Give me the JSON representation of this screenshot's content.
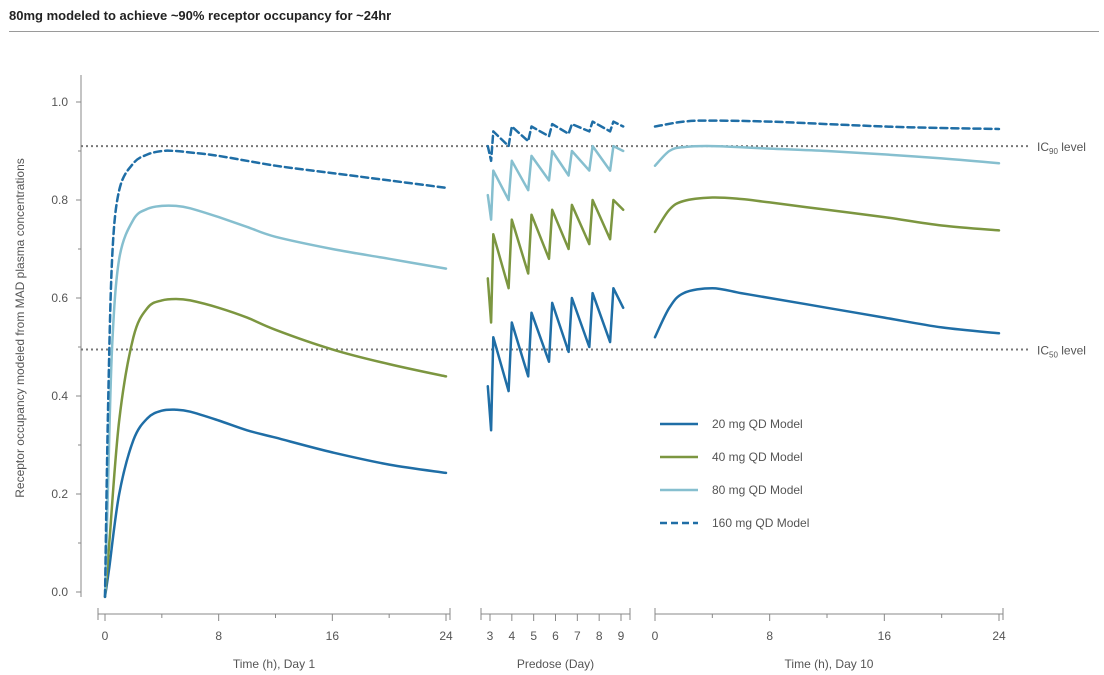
{
  "title": "80mg modeled to achieve ~90% receptor occupancy for ~24hr",
  "chart_data": {
    "type": "line",
    "title": "80mg modeled to achieve ~90% receptor occupancy for ~24hr",
    "ylabel": "Receptor occupancy modeled from MAD plasma concentrations",
    "ylim": [
      0,
      1.0
    ],
    "yticks": [
      "0.0",
      "0.2",
      "0.4",
      "0.6",
      "0.8",
      "1.0"
    ],
    "grid": false,
    "legend_position": "lower-right",
    "reference_lines": [
      {
        "label": "IC",
        "sub": "90",
        "suffix": " level",
        "value": 0.91
      },
      {
        "label": "IC",
        "sub": "50",
        "suffix": " level",
        "value": 0.495
      }
    ],
    "panels": [
      {
        "xlabel": "Time (h), Day 1",
        "xlim": [
          0,
          24
        ],
        "xticks": [
          "0",
          "8",
          "16",
          "24"
        ]
      },
      {
        "xlabel": "Predose (Day)",
        "xlim": [
          3,
          9
        ],
        "xticks": [
          "3",
          "4",
          "5",
          "6",
          "7",
          "8",
          "9"
        ]
      },
      {
        "xlabel": "Time (h), Day 10",
        "xlim": [
          0,
          24
        ],
        "xticks": [
          "0",
          "8",
          "16",
          "24"
        ]
      }
    ],
    "series": [
      {
        "name": "20 mg QD Model",
        "color": "#1f6ea6",
        "dash": false,
        "day1": [
          [
            0,
            -0.01
          ],
          [
            0.3,
            0.05
          ],
          [
            1,
            0.2
          ],
          [
            2,
            0.31
          ],
          [
            3,
            0.355
          ],
          [
            4,
            0.37
          ],
          [
            5,
            0.372
          ],
          [
            6,
            0.368
          ],
          [
            8,
            0.35
          ],
          [
            10,
            0.33
          ],
          [
            12,
            0.315
          ],
          [
            16,
            0.285
          ],
          [
            20,
            0.26
          ],
          [
            24,
            0.243
          ]
        ],
        "predose": [
          [
            2.9,
            0.42
          ],
          [
            3.05,
            0.33
          ],
          [
            3.15,
            0.52
          ],
          [
            3.85,
            0.41
          ],
          [
            4.0,
            0.55
          ],
          [
            4.75,
            0.44
          ],
          [
            4.9,
            0.57
          ],
          [
            5.7,
            0.47
          ],
          [
            5.85,
            0.59
          ],
          [
            6.6,
            0.49
          ],
          [
            6.75,
            0.6
          ],
          [
            7.55,
            0.5
          ],
          [
            7.7,
            0.61
          ],
          [
            8.5,
            0.51
          ],
          [
            8.65,
            0.62
          ],
          [
            9.1,
            0.58
          ]
        ],
        "day10": [
          [
            0,
            0.52
          ],
          [
            1,
            0.58
          ],
          [
            2,
            0.61
          ],
          [
            4,
            0.62
          ],
          [
            6,
            0.61
          ],
          [
            8,
            0.6
          ],
          [
            12,
            0.58
          ],
          [
            16,
            0.56
          ],
          [
            20,
            0.54
          ],
          [
            24,
            0.528
          ]
        ]
      },
      {
        "name": "40 mg QD Model",
        "color": "#7c9640",
        "dash": false,
        "day1": [
          [
            0,
            -0.01
          ],
          [
            0.3,
            0.1
          ],
          [
            1,
            0.35
          ],
          [
            2,
            0.52
          ],
          [
            3,
            0.58
          ],
          [
            4,
            0.595
          ],
          [
            5,
            0.598
          ],
          [
            6,
            0.595
          ],
          [
            8,
            0.58
          ],
          [
            10,
            0.56
          ],
          [
            12,
            0.535
          ],
          [
            16,
            0.495
          ],
          [
            20,
            0.465
          ],
          [
            24,
            0.44
          ]
        ],
        "predose": [
          [
            2.9,
            0.64
          ],
          [
            3.05,
            0.55
          ],
          [
            3.15,
            0.73
          ],
          [
            3.85,
            0.62
          ],
          [
            4.0,
            0.76
          ],
          [
            4.75,
            0.65
          ],
          [
            4.9,
            0.77
          ],
          [
            5.7,
            0.68
          ],
          [
            5.85,
            0.78
          ],
          [
            6.6,
            0.7
          ],
          [
            6.75,
            0.79
          ],
          [
            7.55,
            0.71
          ],
          [
            7.7,
            0.8
          ],
          [
            8.5,
            0.72
          ],
          [
            8.65,
            0.8
          ],
          [
            9.1,
            0.78
          ]
        ],
        "day10": [
          [
            0,
            0.735
          ],
          [
            1,
            0.78
          ],
          [
            2,
            0.798
          ],
          [
            4,
            0.805
          ],
          [
            6,
            0.802
          ],
          [
            8,
            0.795
          ],
          [
            12,
            0.78
          ],
          [
            16,
            0.765
          ],
          [
            20,
            0.748
          ],
          [
            24,
            0.738
          ]
        ]
      },
      {
        "name": "80 mg QD Model",
        "color": "#86bfcf",
        "dash": false,
        "day1": [
          [
            0,
            -0.01
          ],
          [
            0.2,
            0.2
          ],
          [
            0.5,
            0.5
          ],
          [
            1,
            0.68
          ],
          [
            2,
            0.76
          ],
          [
            3,
            0.782
          ],
          [
            4,
            0.788
          ],
          [
            5,
            0.788
          ],
          [
            6,
            0.783
          ],
          [
            8,
            0.765
          ],
          [
            10,
            0.745
          ],
          [
            12,
            0.725
          ],
          [
            16,
            0.7
          ],
          [
            20,
            0.68
          ],
          [
            24,
            0.66
          ]
        ],
        "predose": [
          [
            2.9,
            0.81
          ],
          [
            3.05,
            0.76
          ],
          [
            3.15,
            0.86
          ],
          [
            3.85,
            0.8
          ],
          [
            4.0,
            0.88
          ],
          [
            4.75,
            0.82
          ],
          [
            4.9,
            0.89
          ],
          [
            5.7,
            0.84
          ],
          [
            5.85,
            0.9
          ],
          [
            6.6,
            0.85
          ],
          [
            6.75,
            0.9
          ],
          [
            7.55,
            0.86
          ],
          [
            7.7,
            0.91
          ],
          [
            8.5,
            0.86
          ],
          [
            8.65,
            0.91
          ],
          [
            9.1,
            0.9
          ]
        ],
        "day10": [
          [
            0,
            0.87
          ],
          [
            1,
            0.9
          ],
          [
            2,
            0.908
          ],
          [
            4,
            0.91
          ],
          [
            8,
            0.905
          ],
          [
            12,
            0.9
          ],
          [
            16,
            0.893
          ],
          [
            20,
            0.885
          ],
          [
            24,
            0.875
          ]
        ]
      },
      {
        "name": "160 mg QD Model",
        "color": "#1f6ea6",
        "dash": true,
        "day1": [
          [
            0,
            -0.01
          ],
          [
            0.2,
            0.35
          ],
          [
            0.5,
            0.68
          ],
          [
            1,
            0.82
          ],
          [
            2,
            0.875
          ],
          [
            3,
            0.893
          ],
          [
            4,
            0.9
          ],
          [
            5,
            0.9
          ],
          [
            6,
            0.897
          ],
          [
            8,
            0.89
          ],
          [
            12,
            0.87
          ],
          [
            16,
            0.855
          ],
          [
            20,
            0.84
          ],
          [
            24,
            0.825
          ]
        ],
        "predose": [
          [
            2.9,
            0.91
          ],
          [
            3.05,
            0.88
          ],
          [
            3.15,
            0.94
          ],
          [
            3.85,
            0.91
          ],
          [
            4.0,
            0.95
          ],
          [
            4.75,
            0.92
          ],
          [
            4.9,
            0.95
          ],
          [
            5.7,
            0.93
          ],
          [
            5.85,
            0.955
          ],
          [
            6.6,
            0.935
          ],
          [
            6.75,
            0.955
          ],
          [
            7.55,
            0.94
          ],
          [
            7.7,
            0.96
          ],
          [
            8.5,
            0.94
          ],
          [
            8.65,
            0.96
          ],
          [
            9.1,
            0.95
          ]
        ],
        "day10": [
          [
            0,
            0.95
          ],
          [
            2,
            0.96
          ],
          [
            4,
            0.962
          ],
          [
            8,
            0.96
          ],
          [
            12,
            0.955
          ],
          [
            16,
            0.95
          ],
          [
            20,
            0.947
          ],
          [
            24,
            0.945
          ]
        ]
      }
    ]
  }
}
